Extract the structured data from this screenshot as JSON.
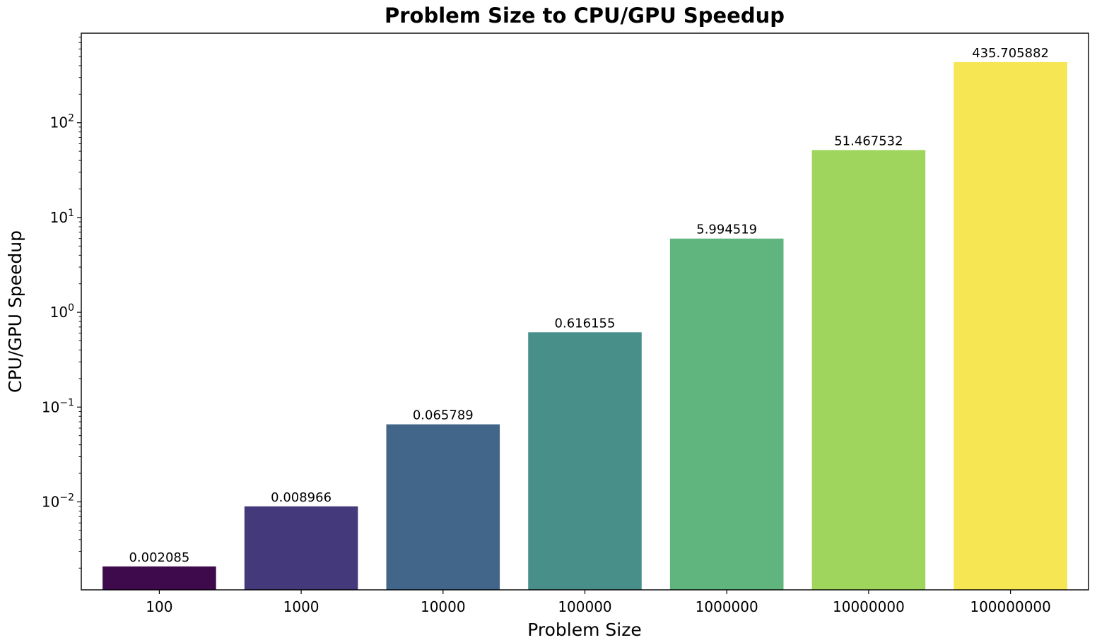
{
  "chart_data": {
    "type": "bar",
    "title": "Problem Size to CPU/GPU Speedup",
    "xlabel": "Problem Size",
    "ylabel": "CPU/GPU Speedup",
    "yscale": "log",
    "ylim": [
      0.00118,
      880
    ],
    "grid": false,
    "categories": [
      "100",
      "1000",
      "10000",
      "100000",
      "1000000",
      "10000000",
      "100000000"
    ],
    "values": [
      0.002085,
      0.008966,
      0.065789,
      0.616155,
      5.994519,
      51.467532,
      435.705882
    ],
    "data_labels": [
      "0.002085",
      "0.008966",
      "0.065789",
      "0.616155",
      "5.994519",
      "51.467532",
      "435.705882"
    ],
    "colors": [
      "#440154",
      "#443983",
      "#31688e",
      "#21918c",
      "#35b779",
      "#90d743",
      "#fde725"
    ],
    "colors_rendered": [
      "#3f0a4c",
      "#443a7b",
      "#41668a",
      "#488f8a",
      "#60b47e",
      "#9fd45d",
      "#f6e653"
    ],
    "yticks": [
      {
        "value": 0.01,
        "base": "10",
        "exp": "−2"
      },
      {
        "value": 0.1,
        "base": "10",
        "exp": "−1"
      },
      {
        "value": 1,
        "base": "10",
        "exp": "0"
      },
      {
        "value": 10,
        "base": "10",
        "exp": "1"
      },
      {
        "value": 100,
        "base": "10",
        "exp": "2"
      }
    ]
  }
}
